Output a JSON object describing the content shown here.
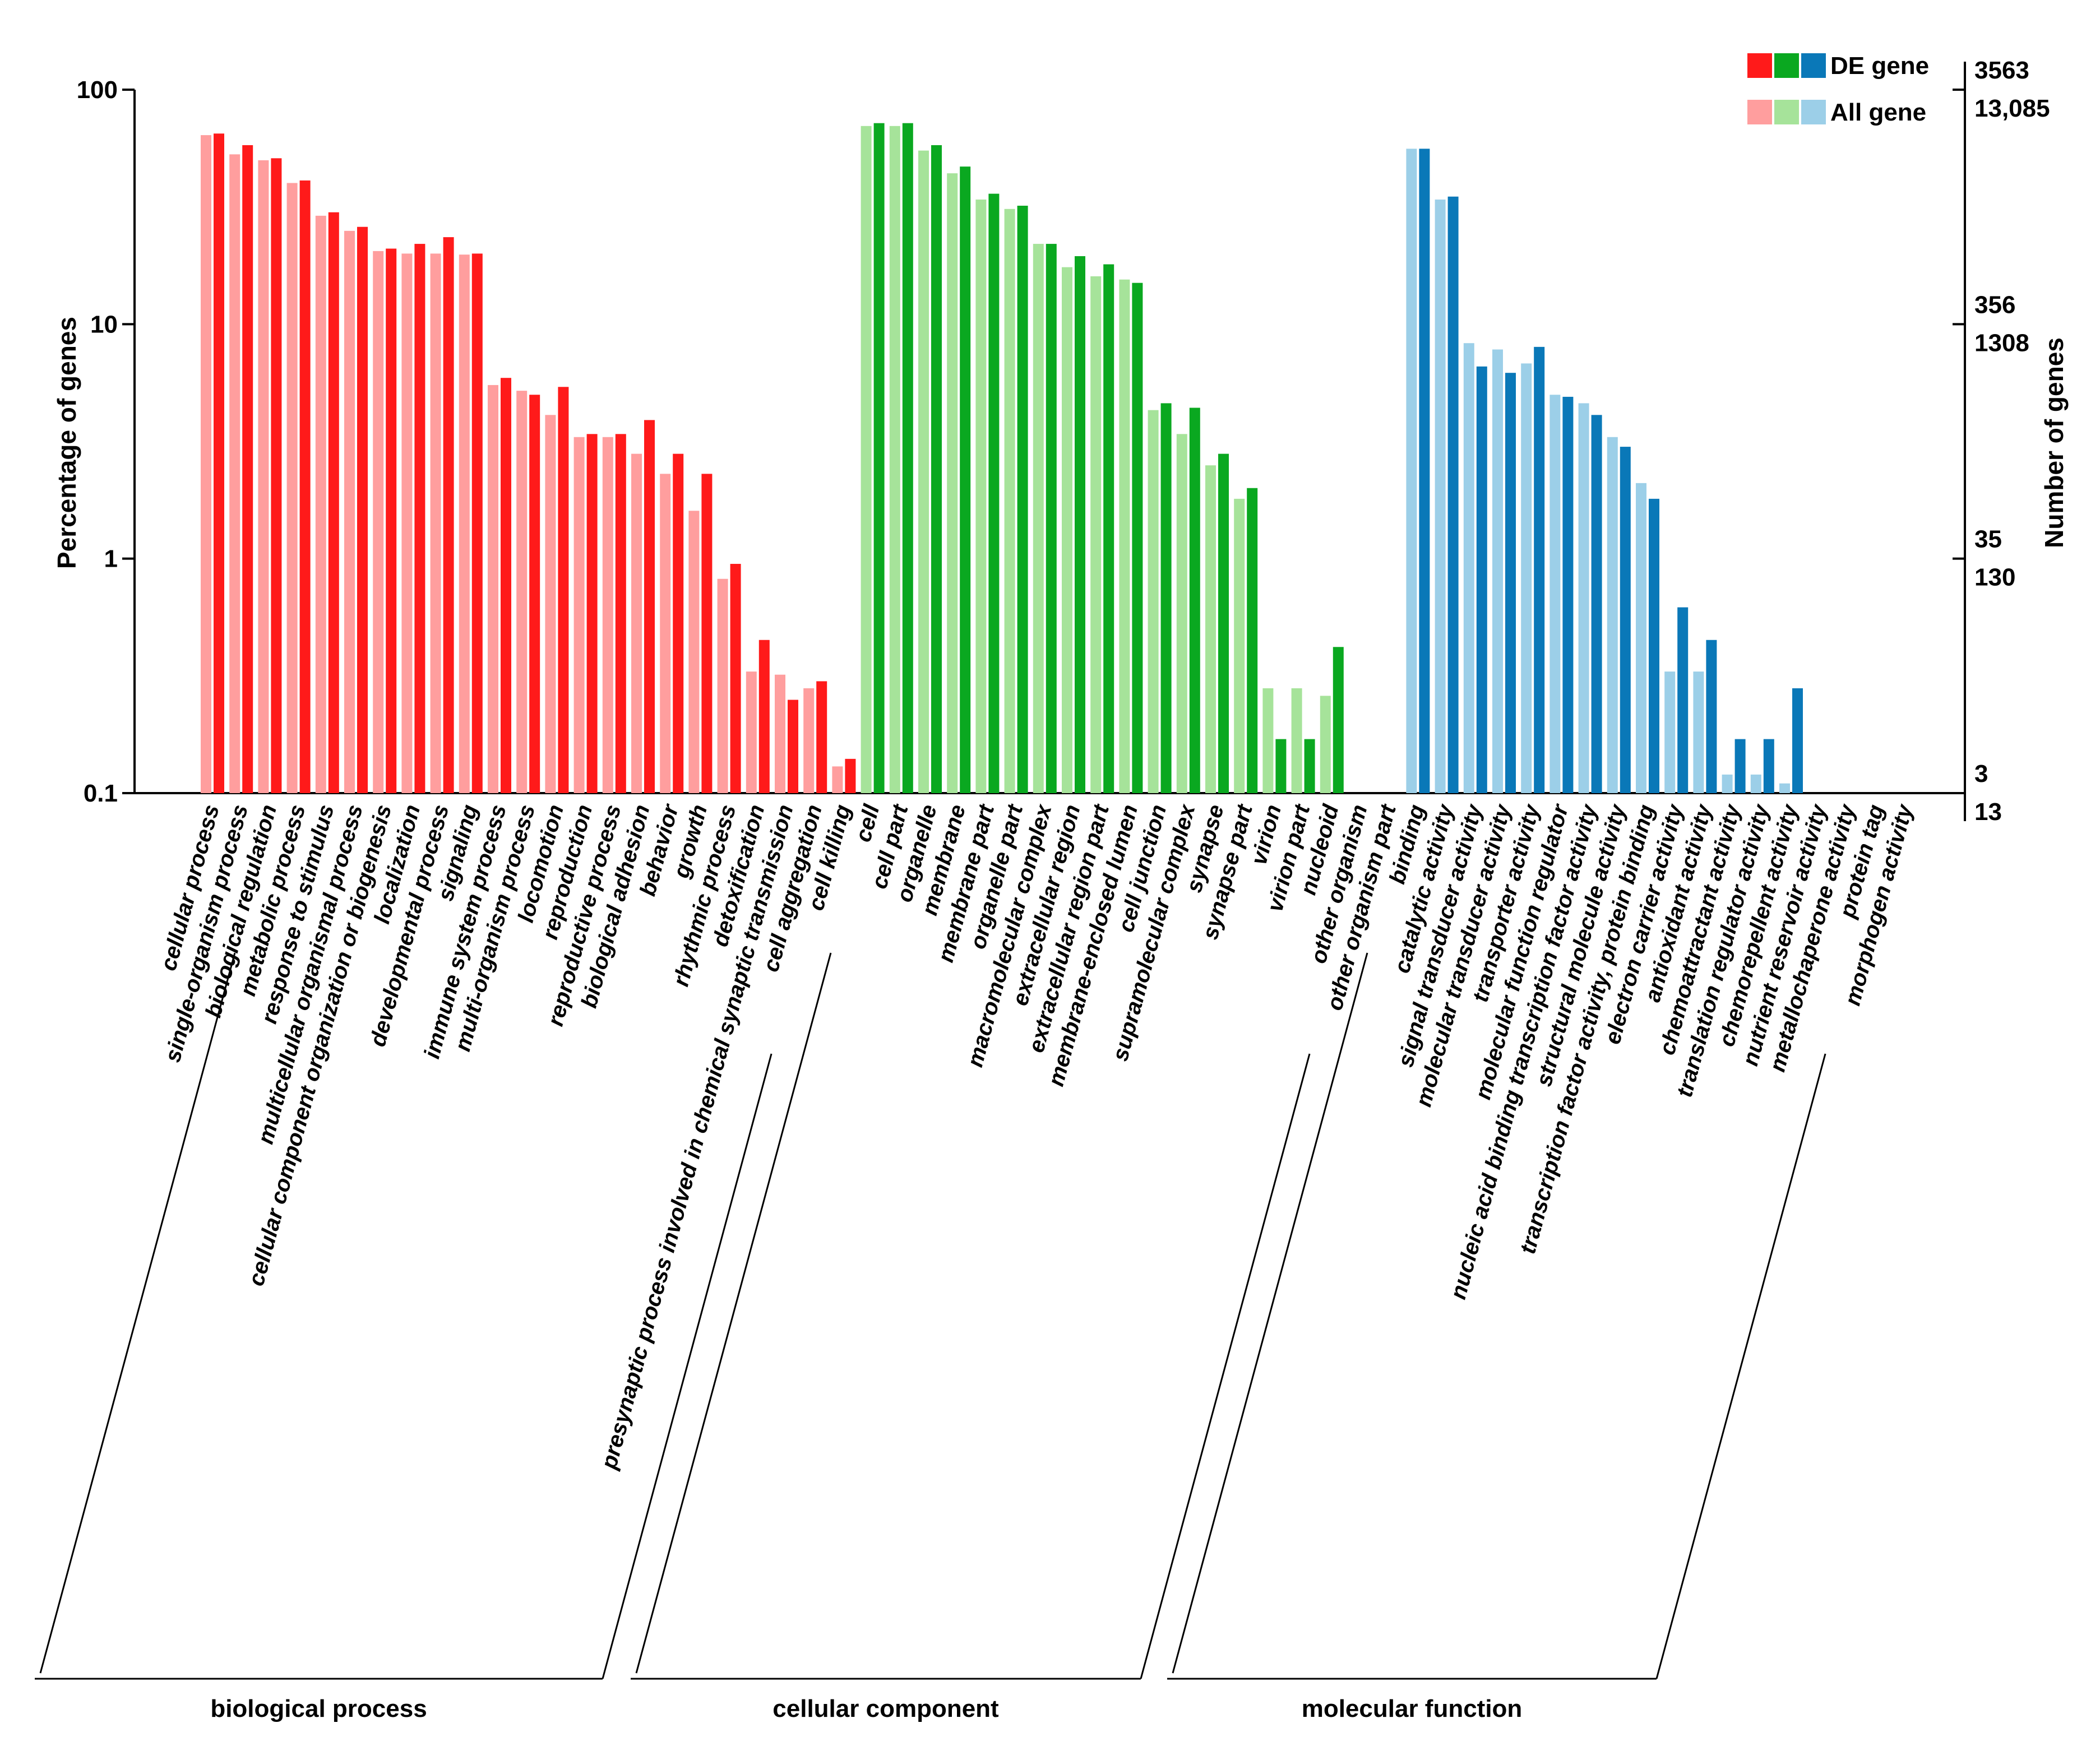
{
  "chart_data": {
    "type": "bar",
    "y_scale": "log",
    "ylim": [
      0.1,
      100
    ],
    "yticks": [
      "0.1",
      "1",
      "10",
      "100"
    ],
    "ylabel": "Percentage of genes",
    "y2label": "Number of genes",
    "y2_ticks": [
      {
        "de": "3563",
        "all": "13,085",
        "pct": 100
      },
      {
        "de": "356",
        "all": "1308",
        "pct": 10
      },
      {
        "de": "35",
        "all": "130",
        "pct": 1
      },
      {
        "de": "3",
        "all": "13",
        "pct": 0.1
      }
    ],
    "legend": {
      "placement": "top-right",
      "de_label": "DE gene",
      "all_label": "All gene"
    },
    "groups": [
      {
        "name": "biological process",
        "de_color": "#ff1a1a",
        "all_color": "#ff9e9e",
        "categories": [
          {
            "label": "cellular process",
            "all": 64,
            "de": 65
          },
          {
            "label": "single-organism process",
            "all": 53,
            "de": 58
          },
          {
            "label": "biological regulation",
            "all": 50,
            "de": 51
          },
          {
            "label": "metabolic process",
            "all": 40,
            "de": 41
          },
          {
            "label": "response to stimulus",
            "all": 29,
            "de": 30
          },
          {
            "label": "multicellular organismal process",
            "all": 25,
            "de": 26
          },
          {
            "label": "cellular component organization or biogenesis",
            "all": 20.5,
            "de": 21
          },
          {
            "label": "localization",
            "all": 20,
            "de": 22
          },
          {
            "label": "developmental process",
            "all": 20,
            "de": 23.5
          },
          {
            "label": "signaling",
            "all": 19.8,
            "de": 20
          },
          {
            "label": "immune system process",
            "all": 5.5,
            "de": 5.9
          },
          {
            "label": "multi-organism process",
            "all": 5.2,
            "de": 5.0
          },
          {
            "label": "locomotion",
            "all": 4.1,
            "de": 5.4
          },
          {
            "label": "reproduction",
            "all": 3.3,
            "de": 3.4
          },
          {
            "label": "reproductive process",
            "all": 3.3,
            "de": 3.4
          },
          {
            "label": "biological adhesion",
            "all": 2.8,
            "de": 3.9
          },
          {
            "label": "behavior",
            "all": 2.3,
            "de": 2.8
          },
          {
            "label": "growth",
            "all": 1.6,
            "de": 2.3
          },
          {
            "label": "rhythmic process",
            "all": 0.82,
            "de": 0.95
          },
          {
            "label": "detoxification",
            "all": 0.33,
            "de": 0.45
          },
          {
            "label": "presynaptic process involved in chemical synaptic transmission",
            "all": 0.32,
            "de": 0.25
          },
          {
            "label": "cell aggregation",
            "all": 0.28,
            "de": 0.3
          },
          {
            "label": "cell killing",
            "all": 0.13,
            "de": 0.14
          }
        ]
      },
      {
        "name": "cellular component",
        "de_color": "#0aa820",
        "all_color": "#a6e39a",
        "categories": [
          {
            "label": "cell",
            "all": 70,
            "de": 72
          },
          {
            "label": "cell part",
            "all": 70,
            "de": 72
          },
          {
            "label": "organelle",
            "all": 55,
            "de": 58
          },
          {
            "label": "membrane",
            "all": 44,
            "de": 47
          },
          {
            "label": "membrane part",
            "all": 34,
            "de": 36
          },
          {
            "label": "organelle part",
            "all": 31,
            "de": 32
          },
          {
            "label": "macromolecular complex",
            "all": 22,
            "de": 22
          },
          {
            "label": "extracellular region",
            "all": 17.5,
            "de": 19.5
          },
          {
            "label": "extracellular region part",
            "all": 16,
            "de": 18
          },
          {
            "label": "membrane-enclosed lumen",
            "all": 15.5,
            "de": 15
          },
          {
            "label": "cell junction",
            "all": 4.3,
            "de": 4.6
          },
          {
            "label": "supramolecular complex",
            "all": 3.4,
            "de": 4.4
          },
          {
            "label": "synapse",
            "all": 2.5,
            "de": 2.8
          },
          {
            "label": "synapse part",
            "all": 1.8,
            "de": 2.0
          },
          {
            "label": "virion",
            "all": 0.28,
            "de": 0.17
          },
          {
            "label": "virion part",
            "all": 0.28,
            "de": 0.17
          },
          {
            "label": "nucleoid",
            "all": 0.26,
            "de": 0.42
          },
          {
            "label": "other organism",
            "all": null,
            "de": null
          },
          {
            "label": "other organism part",
            "all": null,
            "de": null
          }
        ]
      },
      {
        "name": "molecular function",
        "de_color": "#0a78b8",
        "all_color": "#9ccfe8",
        "categories": [
          {
            "label": "binding",
            "all": 56,
            "de": 56
          },
          {
            "label": "catalytic activity",
            "all": 34,
            "de": 35
          },
          {
            "label": "signal transducer activity",
            "all": 8.3,
            "de": 6.6
          },
          {
            "label": "molecular transducer activity",
            "all": 7.8,
            "de": 6.2
          },
          {
            "label": "transporter activity",
            "all": 6.8,
            "de": 8.0
          },
          {
            "label": "molecular function regulator",
            "all": 5.0,
            "de": 4.9
          },
          {
            "label": "nucleic acid binding transcription factor activity",
            "all": 4.6,
            "de": 4.1
          },
          {
            "label": "structural molecule activity",
            "all": 3.3,
            "de": 3.0
          },
          {
            "label": "transcription factor activity, protein binding",
            "all": 2.1,
            "de": 1.8
          },
          {
            "label": "electron carrier activity",
            "all": 0.33,
            "de": 0.62
          },
          {
            "label": "antioxidant activity",
            "all": 0.33,
            "de": 0.45
          },
          {
            "label": "chemoattractant activity",
            "all": 0.12,
            "de": 0.17
          },
          {
            "label": "translation regulator activity",
            "all": 0.12,
            "de": 0.17
          },
          {
            "label": "chemorepellent activity",
            "all": 0.11,
            "de": 0.28
          },
          {
            "label": "nutrient reservoir activity",
            "all": null,
            "de": null
          },
          {
            "label": "metallochaperone activity",
            "all": null,
            "de": null
          },
          {
            "label": "protein tag",
            "all": null,
            "de": null
          },
          {
            "label": "morphogen activity",
            "all": null,
            "de": null
          }
        ]
      }
    ]
  }
}
